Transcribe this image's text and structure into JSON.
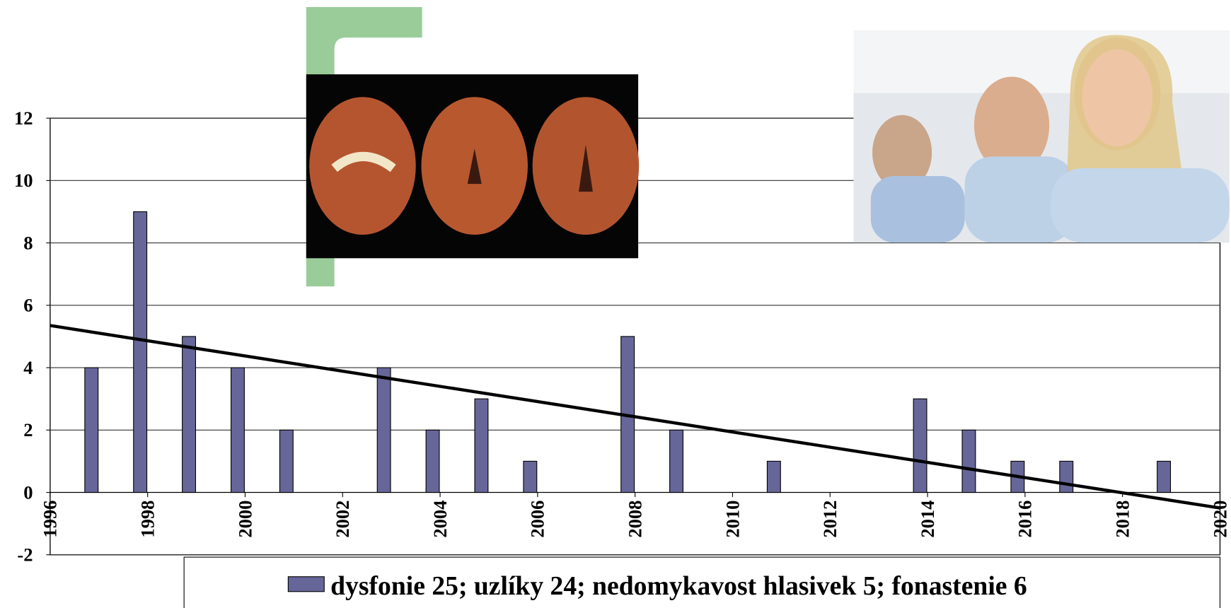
{
  "chart_data": {
    "type": "bar",
    "x": [
      1997,
      1998,
      1999,
      2000,
      2001,
      2003,
      2004,
      2005,
      2006,
      2008,
      2009,
      2011,
      2014,
      2015,
      2016,
      2017,
      2019
    ],
    "series": [
      {
        "name": "dysfonie 25; uzlíky 24; nedomykavost hlasivek 5; fonastenie 6",
        "color": "#666699",
        "values": [
          4,
          9,
          5,
          4,
          2,
          4,
          2,
          3,
          1,
          5,
          2,
          1,
          3,
          2,
          1,
          1,
          1
        ]
      }
    ],
    "trendline": {
      "x": [
        1996,
        2020
      ],
      "values": [
        5.35,
        -0.5
      ],
      "color": "#000000"
    },
    "xlim": [
      1996,
      2020
    ],
    "xticks": [
      1996,
      1998,
      2000,
      2002,
      2004,
      2006,
      2008,
      2010,
      2012,
      2014,
      2016,
      2018,
      2020
    ],
    "ylim": [
      -2,
      12
    ],
    "yticks": [
      -2,
      0,
      2,
      4,
      6,
      8,
      10,
      12
    ],
    "grid": true,
    "legend": "bottom"
  }
}
